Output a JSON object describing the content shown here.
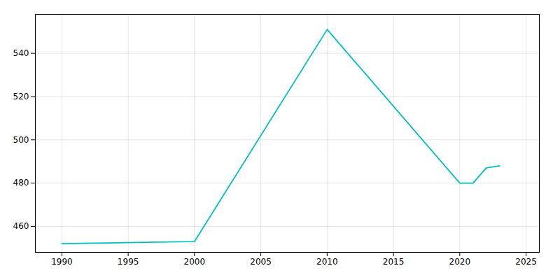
{
  "chart_data": {
    "type": "line",
    "x": [
      1990,
      2000,
      2010,
      2020,
      2021,
      2022,
      2023
    ],
    "values": [
      452,
      453,
      551,
      480,
      480,
      487,
      488
    ],
    "color": "#00BFBF",
    "xlim": [
      1988,
      2026
    ],
    "ylim": [
      448,
      558
    ],
    "xticks": [
      1990,
      1995,
      2000,
      2005,
      2010,
      2015,
      2020,
      2025
    ],
    "yticks": [
      460,
      480,
      500,
      520,
      540
    ],
    "grid": true
  }
}
